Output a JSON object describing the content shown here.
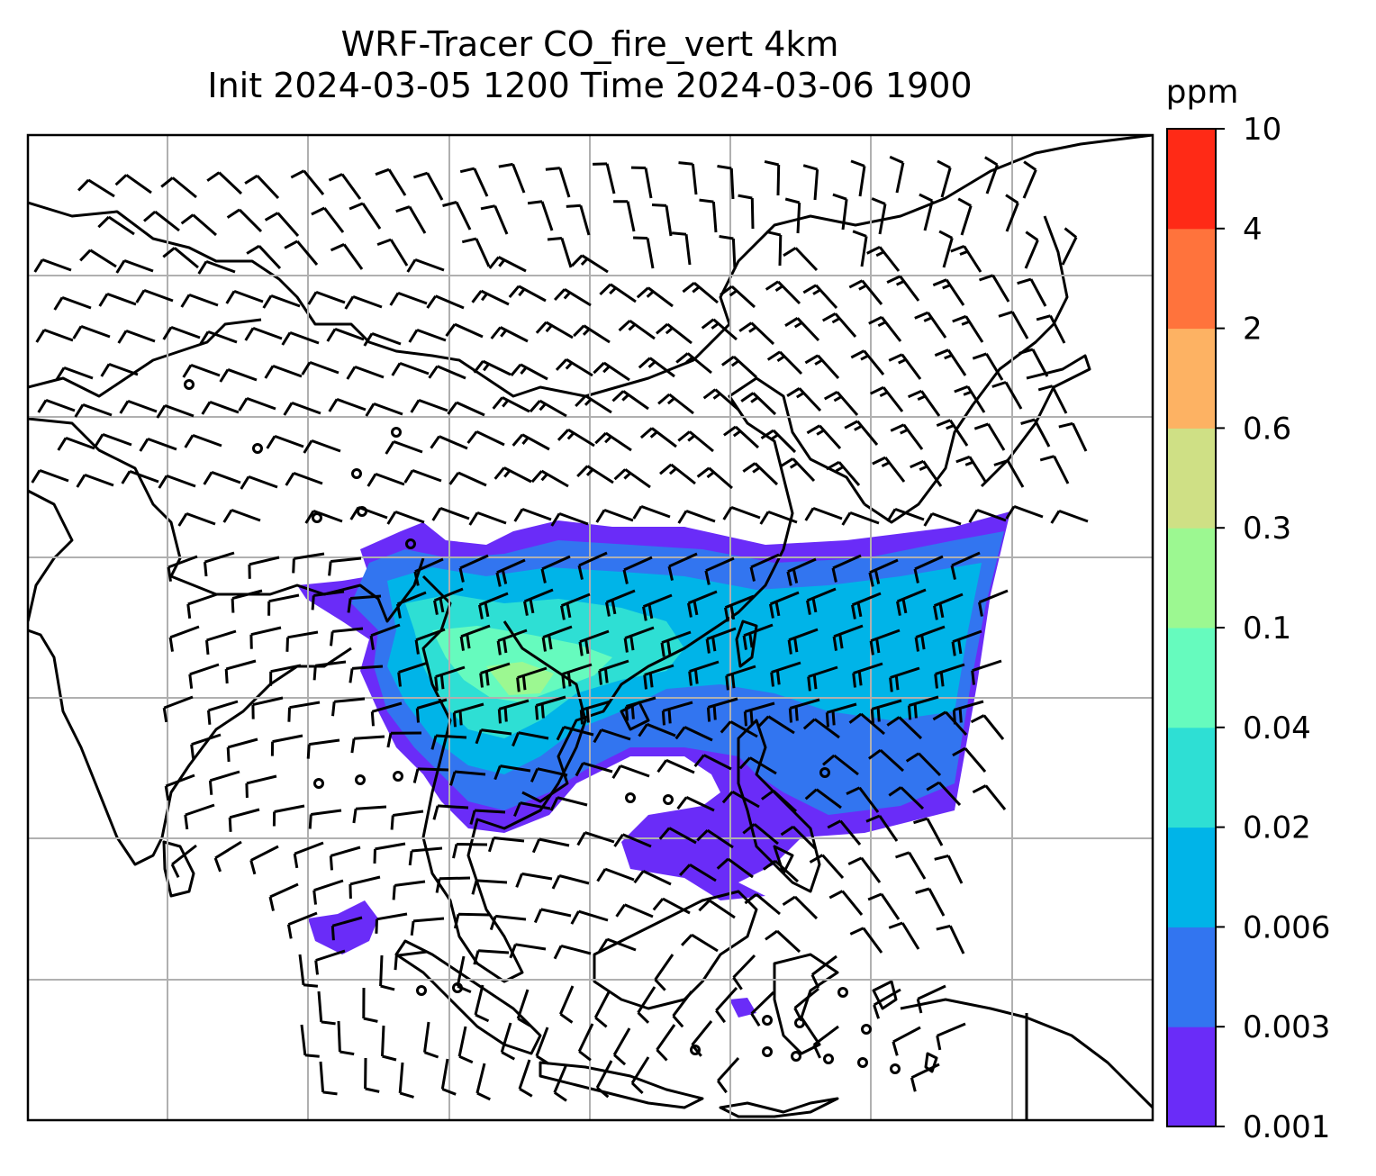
{
  "title": {
    "line1": "WRF-Tracer CO_fire_vert 4km",
    "line2": "Init 2024-03-05 1200 Time 2024-03-06 1900"
  },
  "colorbar": {
    "unit": "ppm",
    "levels": [
      "0.001",
      "0.003",
      "0.006",
      "0.02",
      "0.04",
      "0.1",
      "0.3",
      "0.6",
      "2",
      "4",
      "10"
    ],
    "colors": [
      "#6a2cf8",
      "#3275f0",
      "#00b4e8",
      "#2edfd4",
      "#66fbbe",
      "#9cf891",
      "#cfe085",
      "#fdb263",
      "#ff733c",
      "#ff2a16"
    ]
  },
  "map": {
    "plume_colors": {
      "faint": "#6a2cf8",
      "low": "#3275f0",
      "mid": "#00b4e8",
      "higher": "#2edfd4",
      "high": "#66fbbe",
      "peak": "#9cf891"
    },
    "gridline_color": "#b0b0b0",
    "coastline_color": "#000000",
    "symbols": [
      "wind-barb-icon",
      "calm-wind-circle-icon"
    ]
  }
}
